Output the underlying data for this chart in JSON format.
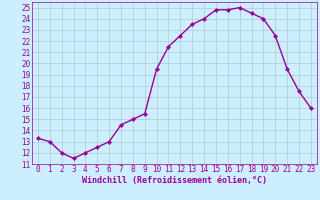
{
  "x": [
    0,
    1,
    2,
    3,
    4,
    5,
    6,
    7,
    8,
    9,
    10,
    11,
    12,
    13,
    14,
    15,
    16,
    17,
    18,
    19,
    20,
    21,
    22,
    23
  ],
  "y": [
    13.3,
    13.0,
    12.0,
    11.5,
    12.0,
    12.5,
    13.0,
    14.5,
    15.0,
    15.5,
    19.5,
    21.5,
    22.5,
    23.5,
    24.0,
    24.8,
    24.8,
    25.0,
    24.5,
    24.0,
    22.5,
    19.5,
    17.5,
    16.0
  ],
  "line_color": "#990099",
  "marker": "D",
  "marker_size": 2.0,
  "xlabel": "Windchill (Refroidissement éolien,°C)",
  "xlabel_fontsize": 6.0,
  "bg_color": "#cceeff",
  "grid_color": "#aacccc",
  "ylim": [
    11,
    25.5
  ],
  "xlim": [
    -0.5,
    23.5
  ],
  "yticks": [
    11,
    12,
    13,
    14,
    15,
    16,
    17,
    18,
    19,
    20,
    21,
    22,
    23,
    24,
    25
  ],
  "xticks": [
    0,
    1,
    2,
    3,
    4,
    5,
    6,
    7,
    8,
    9,
    10,
    11,
    12,
    13,
    14,
    15,
    16,
    17,
    18,
    19,
    20,
    21,
    22,
    23
  ],
  "tick_fontsize": 5.5,
  "line_width": 1.0
}
